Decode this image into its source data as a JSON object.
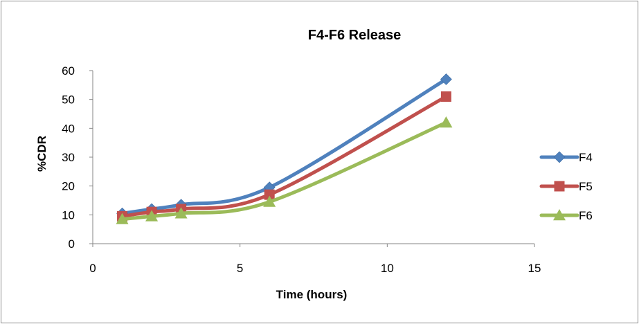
{
  "chart_data": {
    "type": "line",
    "title": "F4-F6 Release",
    "xlabel": "Time (hours)",
    "ylabel": "%CDR",
    "xlim": [
      0,
      15
    ],
    "ylim": [
      0,
      60
    ],
    "xticks": [
      0,
      5,
      10,
      15
    ],
    "yticks": [
      0,
      10,
      20,
      30,
      40,
      50,
      60
    ],
    "grid": false,
    "smooth": true,
    "legend_position": "right",
    "x": [
      1,
      2,
      3,
      6,
      12
    ],
    "series": [
      {
        "name": "F4",
        "values": [
          10.5,
          12,
          13.5,
          19.5,
          57
        ],
        "color": "#4f81bd",
        "marker": "diamond"
      },
      {
        "name": "F5",
        "values": [
          9.5,
          11,
          12,
          17,
          51
        ],
        "color": "#c0504d",
        "marker": "square"
      },
      {
        "name": "F6",
        "values": [
          8.5,
          9.5,
          10.5,
          14.5,
          42
        ],
        "color": "#9bbb59",
        "marker": "triangle"
      }
    ]
  }
}
